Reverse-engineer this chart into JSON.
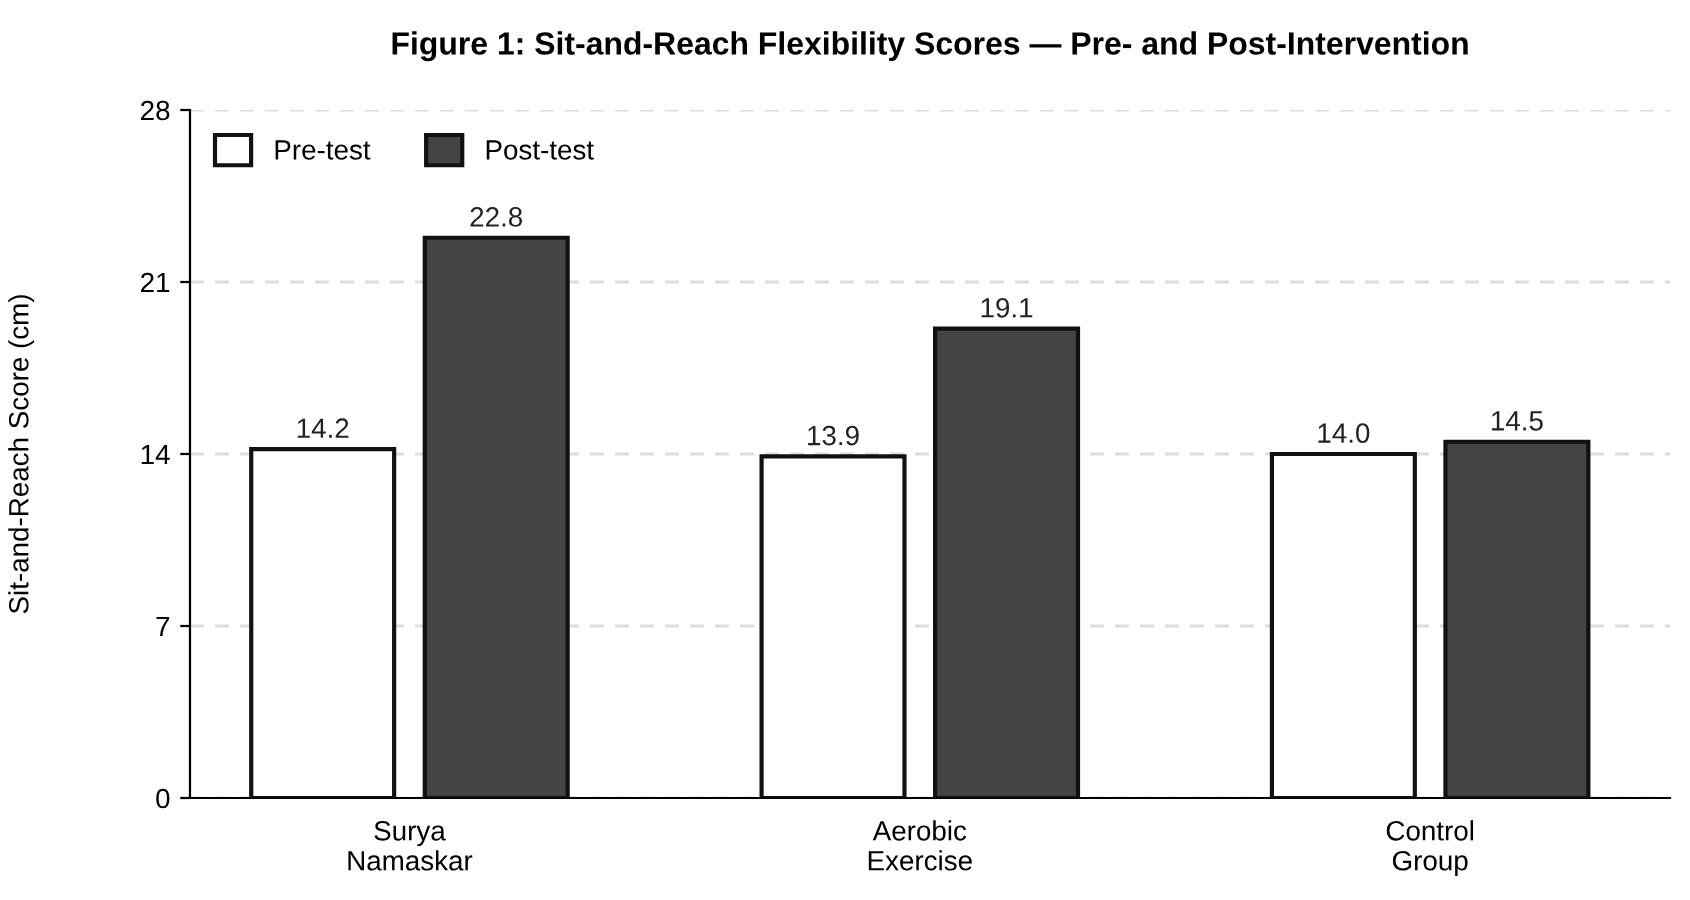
{
  "chart_data": {
    "type": "bar",
    "title": "Figure 1: Sit-and-Reach Flexibility Scores — Pre- and Post-Intervention",
    "ylabel": "Sit-and-Reach Score (cm)",
    "categories": [
      "Surya Namaskar",
      "Aerobic Exercise",
      "Control Group"
    ],
    "series": [
      {
        "name": "Pre-test",
        "color": "#ffffff",
        "values": [
          14.2,
          13.9,
          14.0
        ],
        "value_labels": [
          "14.2",
          "13.9",
          "14.0"
        ]
      },
      {
        "name": "Post-test",
        "color": "#444444",
        "values": [
          22.8,
          19.1,
          14.5
        ],
        "value_labels": [
          "22.8",
          "19.1",
          "14.5"
        ]
      }
    ],
    "ylim": [
      0,
      28
    ],
    "yticks": [
      0,
      7,
      14,
      21,
      28
    ],
    "grid": "y",
    "legend": "top left"
  }
}
